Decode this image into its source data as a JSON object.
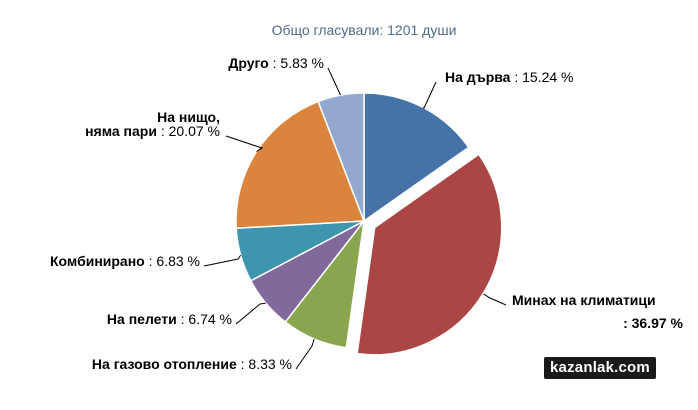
{
  "chart_data": {
    "type": "pie",
    "title": "Общо гласували: 1201 души",
    "watermark": "kazanlak.com",
    "slices": [
      {
        "label": "На дърва",
        "value": 15.24,
        "display": ": 15.24 %",
        "color": "#4572a7",
        "pulled": false
      },
      {
        "label": "Минах на климатици",
        "value": 36.97,
        "display": ": 36.97 %",
        "color": "#aa4643",
        "pulled": true
      },
      {
        "label": "На газово отопление",
        "value": 8.33,
        "display": ": 8.33 %",
        "color": "#89a54e",
        "pulled": false
      },
      {
        "label": "На пелети",
        "value": 6.74,
        "display": " : 6.74 %",
        "color": "#80699b",
        "pulled": false
      },
      {
        "label": "Комбинирано",
        "value": 6.83,
        "display": " : 6.83 %",
        "color": "#3d96ae",
        "pulled": false
      },
      {
        "label": "На нищо,\nняма пари",
        "value": 20.07,
        "display": ": 20.07 %",
        "color": "#db843d",
        "pulled": false
      },
      {
        "label": "Друго",
        "value": 5.83,
        "display": " : 5.83 %",
        "color": "#92a8cd",
        "pulled": false
      }
    ]
  }
}
